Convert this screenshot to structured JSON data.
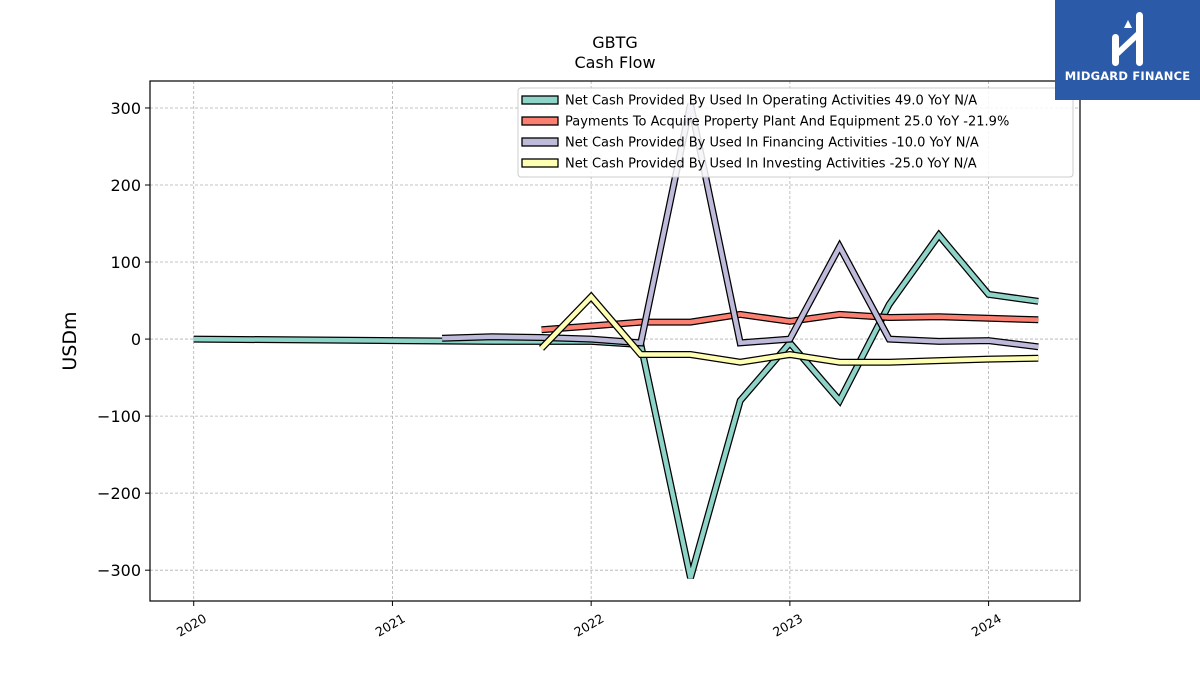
{
  "chart_data": {
    "type": "line",
    "title": "GBTG",
    "subtitle": "Cash Flow",
    "xlabel": "",
    "ylabel": "USDm",
    "ylim": [
      -340,
      335
    ],
    "xlim": [
      2019.78,
      2024.46
    ],
    "x_ticks": [
      2020,
      2021,
      2022,
      2023,
      2024
    ],
    "x_tick_labels": [
      "2020",
      "2021",
      "2022",
      "2023",
      "2024"
    ],
    "y_ticks": [
      -300,
      -200,
      -100,
      0,
      100,
      200,
      300
    ],
    "y_tick_labels": [
      "−300",
      "−200",
      "−100",
      "0",
      "100",
      "200",
      "300"
    ],
    "grid": true,
    "legend_position": "top-right",
    "series": [
      {
        "name": "Net Cash Provided By Used In Operating Activities  49.0 YoY N/A",
        "color": "#8dd3c7",
        "points": [
          [
            2020.0,
            0
          ],
          [
            2021.0,
            -2
          ],
          [
            2021.5,
            -3
          ],
          [
            2022.0,
            -3
          ],
          [
            2022.25,
            -7
          ],
          [
            2022.5,
            -310
          ],
          [
            2022.75,
            -80
          ],
          [
            2023.0,
            -5
          ],
          [
            2023.25,
            -80
          ],
          [
            2023.5,
            45
          ],
          [
            2023.75,
            135
          ],
          [
            2024.0,
            58
          ],
          [
            2024.25,
            49
          ]
        ]
      },
      {
        "name": "Payments To Acquire Property Plant And Equipment  25.0 YoY -21.9%",
        "color": "#fb8072",
        "points": [
          [
            2021.75,
            12
          ],
          [
            2022.0,
            17
          ],
          [
            2022.25,
            22
          ],
          [
            2022.5,
            22
          ],
          [
            2022.75,
            32
          ],
          [
            2023.0,
            23
          ],
          [
            2023.25,
            32
          ],
          [
            2023.5,
            28
          ],
          [
            2023.75,
            29
          ],
          [
            2024.0,
            27
          ],
          [
            2024.25,
            25
          ]
        ]
      },
      {
        "name": "Net Cash Provided By Used In Financing Activities  -10.0 YoY N/A",
        "color": "#bebada",
        "points": [
          [
            2021.25,
            1
          ],
          [
            2021.5,
            3
          ],
          [
            2021.75,
            2
          ],
          [
            2022.0,
            0
          ],
          [
            2022.25,
            -5
          ],
          [
            2022.5,
            305
          ],
          [
            2022.75,
            -5
          ],
          [
            2023.0,
            0
          ],
          [
            2023.25,
            120
          ],
          [
            2023.5,
            0
          ],
          [
            2023.75,
            -3
          ],
          [
            2024.0,
            -2
          ],
          [
            2024.25,
            -10
          ]
        ]
      },
      {
        "name": "Net Cash Provided By Used In Investing Activities  -25.0 YoY N/A",
        "color": "#ffffb3",
        "points": [
          [
            2021.75,
            -12
          ],
          [
            2022.0,
            55
          ],
          [
            2022.25,
            -20
          ],
          [
            2022.5,
            -20
          ],
          [
            2022.75,
            -30
          ],
          [
            2023.0,
            -20
          ],
          [
            2023.25,
            -30
          ],
          [
            2023.5,
            -30
          ],
          [
            2023.75,
            -28
          ],
          [
            2024.0,
            -26
          ],
          [
            2024.25,
            -25
          ]
        ]
      }
    ]
  },
  "logo": {
    "text": "MIDGARD FINANCE",
    "background": "#2b5aa8"
  }
}
